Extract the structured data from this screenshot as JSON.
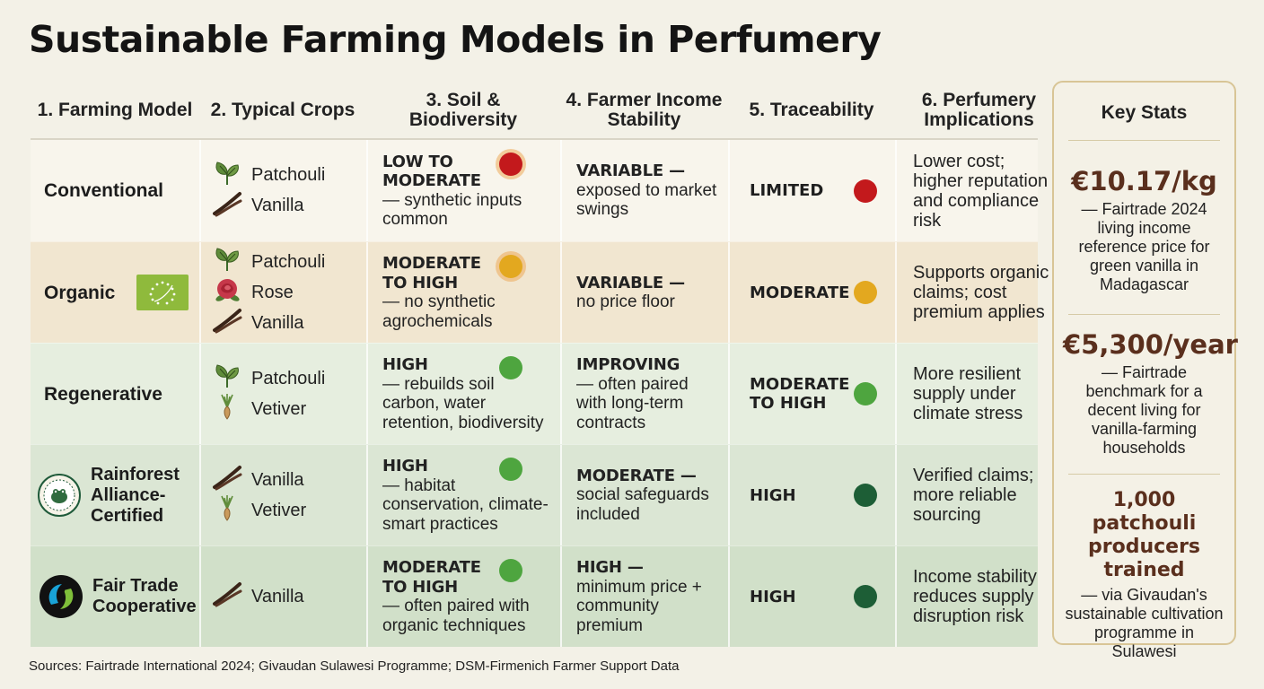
{
  "title": "Sustainable Farming Models in Perfumery",
  "columns": [
    "1. Farming Model",
    "2. Typical Crops",
    "3. Soil & Biodiversity",
    "4. Farmer Income Stability",
    "5. Traceability",
    "6. Perfumery Implications"
  ],
  "colors": {
    "low": "#c3191c",
    "moderate": "#e3a81f",
    "high_light": "#4ea53f",
    "high_dark": "#1d5e36",
    "accent_brown": "#5a2f1d"
  },
  "rows": [
    {
      "model": "Conventional",
      "crops": [
        {
          "name": "Patchouli",
          "icon": "patchouli-icon"
        },
        {
          "name": "Vanilla",
          "icon": "vanilla-icon"
        }
      ],
      "soil_rating": "LOW TO MODERATE",
      "soil_desc": "— synthetic inputs common",
      "soil_color": "#c3191c",
      "income_rating": "VARIABLE —",
      "income_desc": "exposed to market swings",
      "trace": "LIMITED",
      "trace_color": "#c3191c",
      "implications": "Lower cost; higher reputation and compliance risk",
      "bg": "#f8f5ec"
    },
    {
      "model": "Organic",
      "crops": [
        {
          "name": "Patchouli",
          "icon": "patchouli-icon"
        },
        {
          "name": "Rose",
          "icon": "rose-icon"
        },
        {
          "name": "Vanilla",
          "icon": "vanilla-icon"
        }
      ],
      "soil_rating": "MODERATE TO HIGH",
      "soil_desc": "— no synthetic agrochemicals",
      "soil_color": "#e3a81f",
      "income_rating": "VARIABLE —",
      "income_desc": "no price floor",
      "trace": "MODERATE",
      "trace_color": "#e3a81f",
      "implications": "Supports organic claims; cost premium applies",
      "bg": "#f1e6d0"
    },
    {
      "model": "Regenerative",
      "crops": [
        {
          "name": "Patchouli",
          "icon": "patchouli-icon"
        },
        {
          "name": "Vetiver",
          "icon": "vetiver-icon"
        }
      ],
      "soil_rating": "HIGH",
      "soil_desc": "— rebuilds soil carbon, water retention, biodiversity",
      "soil_color": "#4ea53f",
      "income_rating": "IMPROVING",
      "income_desc": "— often paired with long-term contracts",
      "trace": "MODERATE TO HIGH",
      "trace_color": "#4ea53f",
      "implications": "More resilient supply under climate stress",
      "bg": "#e6eedf"
    },
    {
      "model": "Rainforest Alliance-Certified",
      "crops": [
        {
          "name": "Vanilla",
          "icon": "vanilla-icon"
        },
        {
          "name": "Vetiver",
          "icon": "vetiver-icon"
        }
      ],
      "soil_rating": "HIGH",
      "soil_desc": "— habitat conservation, climate-smart practices",
      "soil_color": "#4ea53f",
      "income_rating": "MODERATE —",
      "income_desc": "social safeguards included",
      "trace": "HIGH",
      "trace_color": "#1d5e36",
      "implications": "Verified claims; more reliable sourcing",
      "bg": "#dbe6d4"
    },
    {
      "model": "Fair Trade Cooperative",
      "crops": [
        {
          "name": "Vanilla",
          "icon": "vanilla-icon"
        }
      ],
      "soil_rating": "MODERATE TO HIGH",
      "soil_desc": "— often paired with organic techniques",
      "soil_color": "#4ea53f",
      "income_rating": "HIGH —",
      "income_desc": "minimum price + community premium",
      "trace": "HIGH",
      "trace_color": "#1d5e36",
      "implications": "Income stability reduces supply disruption risk",
      "bg": "#d1e0c9"
    }
  ],
  "stats": {
    "title": "Key Stats",
    "items": [
      {
        "value": "€10.17/kg",
        "desc": "— Fairtrade 2024 living income reference price for green vanilla in Madagascar"
      },
      {
        "value": "€5,300/year",
        "desc": "— Fairtrade benchmark for a decent living for vanilla-farming households"
      },
      {
        "value": "1,000 patchouli producers trained",
        "desc": "— via Givaudan's sustainable cultivation programme in Sulawesi"
      }
    ]
  },
  "sources": "Sources: Fairtrade International 2024; Givaudan Sulawesi Programme; DSM-Firmenich Farmer Support Data"
}
